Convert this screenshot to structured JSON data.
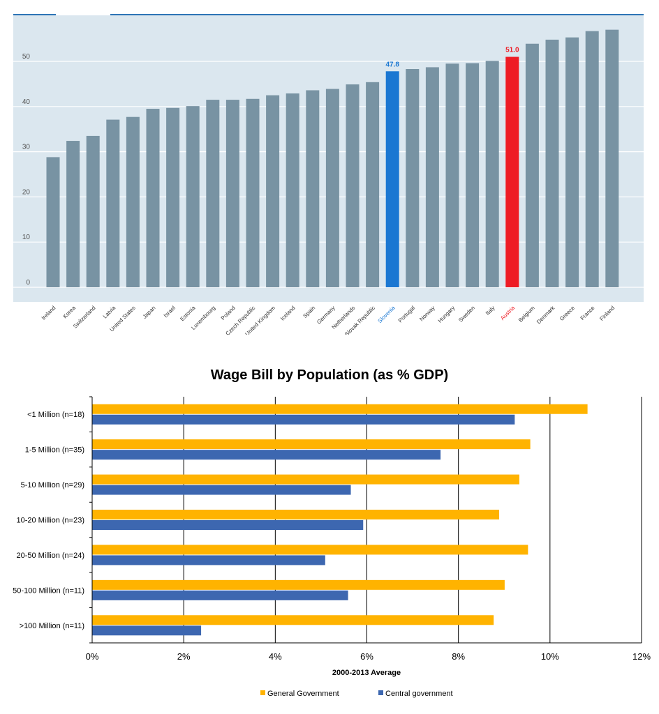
{
  "colors": {
    "panel_bg": "#dbe7ef",
    "panel_top_line": "#2e75b6",
    "bar_default": "#7893a3",
    "bar_slovenia": "#1a77d2",
    "bar_austria": "#ee1c25",
    "general_government": "#ffb300",
    "central_government": "#3d67b0",
    "gridline": "#000000"
  },
  "chart_data": [
    {
      "type": "bar",
      "categories": [
        "Ireland",
        "Korea",
        "Switzerland",
        "Latvia",
        "United States",
        "Japan",
        "Israel",
        "Estonia",
        "Luxembourg",
        "Poland",
        "Czech Republic",
        "United Kingdom",
        "Iceland",
        "Spain",
        "Germany",
        "Netherlands",
        "Slovak Republic",
        "Slovenia",
        "Portugal",
        "Norway",
        "Hungary",
        "Sweden",
        "Italy",
        "Austria",
        "Belgium",
        "Denmark",
        "Greece",
        "France",
        "Finland"
      ],
      "values": [
        28.8,
        32.4,
        33.5,
        37.1,
        37.7,
        39.5,
        39.7,
        40.1,
        41.5,
        41.5,
        41.7,
        42.5,
        42.9,
        43.6,
        43.9,
        44.9,
        45.4,
        47.8,
        48.3,
        48.7,
        49.5,
        49.6,
        50.1,
        51.0,
        53.9,
        54.8,
        55.3,
        56.7,
        57.0
      ],
      "data_labels": [
        {
          "category": "Slovenia",
          "text": "47.8"
        },
        {
          "category": "Austria",
          "text": "51.0"
        }
      ],
      "highlight": {
        "Slovenia": "#1a77d2",
        "Austria": "#ee1c25"
      },
      "y_ticks": [
        "0",
        "10",
        "20",
        "30",
        "40",
        "50"
      ],
      "ylim": [
        0,
        58
      ],
      "grid": true,
      "title": "",
      "xlabel": "",
      "ylabel": ""
    },
    {
      "type": "bar",
      "orientation": "horizontal",
      "title": "Wage Bill by Population (as % GDP)",
      "xlabel": "2000-2013 Average",
      "ylabel": "",
      "categories": [
        "<1 Million (n=18)",
        "1-5 Million (n=35)",
        "5-10 Million (n=29)",
        "10-20 Million (n=23)",
        "20-50 Million (n=24)",
        "50-100 Million (n=11)",
        ">100 Million (n=11)"
      ],
      "series": [
        {
          "name": "General Government",
          "values": [
            10.82,
            9.57,
            9.33,
            8.89,
            9.52,
            9.01,
            8.77
          ]
        },
        {
          "name": "Central government",
          "values": [
            9.23,
            7.61,
            5.65,
            5.92,
            5.09,
            5.59,
            2.38
          ]
        }
      ],
      "x_ticks": [
        "0%",
        "2%",
        "4%",
        "6%",
        "8%",
        "10%",
        "12%"
      ],
      "xlim": [
        0,
        12
      ],
      "grid": true,
      "legend_position": "bottom"
    }
  ]
}
